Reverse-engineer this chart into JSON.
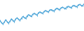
{
  "values": [
    72,
    68,
    65,
    69,
    74,
    70,
    67,
    71,
    76,
    73,
    70,
    76,
    78,
    75,
    73,
    77,
    81,
    79,
    77,
    82,
    85,
    83,
    81,
    86,
    88,
    86,
    84,
    89,
    91,
    89,
    88,
    92,
    94,
    92,
    91,
    95,
    96,
    94,
    93,
    97,
    99,
    97,
    96,
    100,
    101,
    99,
    98,
    102,
    103,
    101,
    100,
    104,
    105,
    103,
    102,
    106,
    107,
    105,
    104,
    108
  ],
  "line_color": "#4da6d9",
  "marker_color": "#4da6d9",
  "background_color": "#ffffff",
  "ylim_min": 50,
  "ylim_max": 118,
  "linewidth": 0.9,
  "marker_size": 1.5
}
